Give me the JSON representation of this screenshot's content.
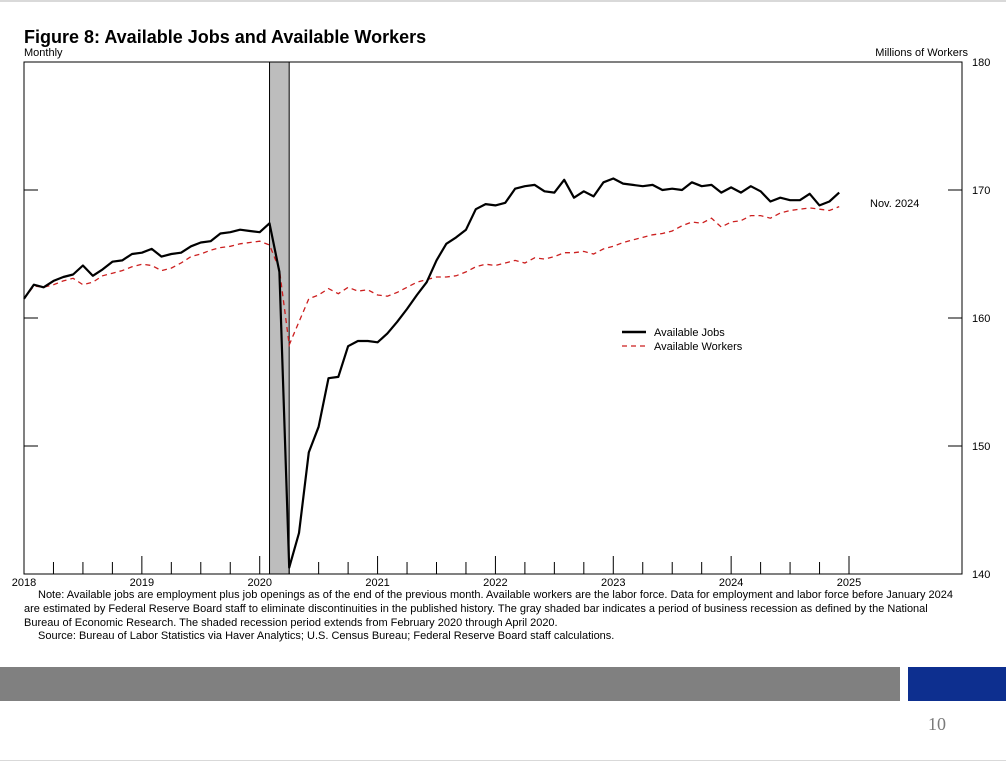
{
  "header": {
    "title": "Figure 8: Available Jobs and Available Workers",
    "frequency": "Monthly",
    "units": "Millions of Workers"
  },
  "annotation": "Nov. 2024",
  "footer": {
    "note": "Note: Available jobs are employment plus job openings as of the end of the previous month. Available workers are the labor force. Data for employment and labor force before January 2024 are estimated by Federal Reserve Board staff to eliminate discontinuities in the published history. The gray shaded bar indicates a period of business recession as defined by the National Bureau of Economic Research. The shaded recession period extends from February 2020 through April 2020.",
    "source": "Source: Bureau of Labor Statistics via Haver Analytics; U.S. Census Bureau; Federal Reserve Board staff calculations.",
    "page_number": "10"
  },
  "colors": {
    "jobs": "#000000",
    "workers": "#cc1f1f",
    "recession": "#bdbdbd",
    "footer_bar": "#808080",
    "accent_bar": "#0d2f8f"
  },
  "chart_data": {
    "type": "line",
    "title": "Figure 8: Available Jobs and Available Workers",
    "ylabel": "Millions of Workers",
    "x_start": "2018-01",
    "ylim": [
      140,
      180
    ],
    "yticks": [
      140,
      150,
      160,
      170,
      180
    ],
    "xticks": [
      "2018",
      "2019",
      "2020",
      "2021",
      "2022",
      "2023",
      "2024",
      "2025"
    ],
    "recession": {
      "start": "2020-02",
      "end": "2020-04"
    },
    "legend_position": "center-right",
    "series": [
      {
        "name": "Available Jobs",
        "style": "solid",
        "values": [
          161.5,
          162.6,
          162.4,
          162.9,
          163.2,
          163.4,
          164.1,
          163.3,
          163.8,
          164.4,
          164.5,
          165.0,
          165.1,
          165.4,
          164.8,
          165.0,
          165.1,
          165.6,
          165.9,
          166.0,
          166.6,
          166.7,
          166.9,
          166.8,
          166.7,
          167.4,
          163.6,
          140.5,
          143.2,
          149.5,
          151.5,
          155.3,
          155.4,
          157.8,
          158.2,
          158.2,
          158.1,
          158.8,
          159.7,
          160.7,
          161.8,
          162.8,
          164.5,
          165.8,
          166.3,
          166.9,
          168.5,
          168.9,
          168.8,
          169.0,
          170.1,
          170.3,
          170.4,
          169.9,
          169.8,
          170.8,
          169.4,
          169.9,
          169.5,
          170.6,
          170.9,
          170.5,
          170.4,
          170.3,
          170.4,
          170.0,
          170.1,
          170.0,
          170.6,
          170.3,
          170.4,
          169.8,
          170.2,
          169.8,
          170.3,
          169.9,
          169.1,
          169.4,
          169.2,
          169.2,
          169.7,
          168.8,
          169.1,
          169.8
        ]
      },
      {
        "name": "Available Workers",
        "style": "dashed",
        "values": [
          161.5,
          162.5,
          162.4,
          162.6,
          162.9,
          163.1,
          162.6,
          162.8,
          163.3,
          163.5,
          163.7,
          164.0,
          164.2,
          164.1,
          163.7,
          163.9,
          164.3,
          164.8,
          165.0,
          165.3,
          165.5,
          165.6,
          165.8,
          165.9,
          166.0,
          165.7,
          163.8,
          157.9,
          159.7,
          161.5,
          161.8,
          162.3,
          161.9,
          162.4,
          162.1,
          162.2,
          161.8,
          161.7,
          162.0,
          162.4,
          162.8,
          163.0,
          163.2,
          163.2,
          163.3,
          163.6,
          164.0,
          164.2,
          164.1,
          164.3,
          164.5,
          164.3,
          164.7,
          164.6,
          164.8,
          165.1,
          165.1,
          165.2,
          165.0,
          165.4,
          165.6,
          165.9,
          166.1,
          166.3,
          166.5,
          166.6,
          166.8,
          167.2,
          167.5,
          167.4,
          167.8,
          167.1,
          167.5,
          167.6,
          168.0,
          168.0,
          167.8,
          168.2,
          168.4,
          168.5,
          168.6,
          168.5,
          168.4,
          168.7
        ]
      }
    ]
  }
}
